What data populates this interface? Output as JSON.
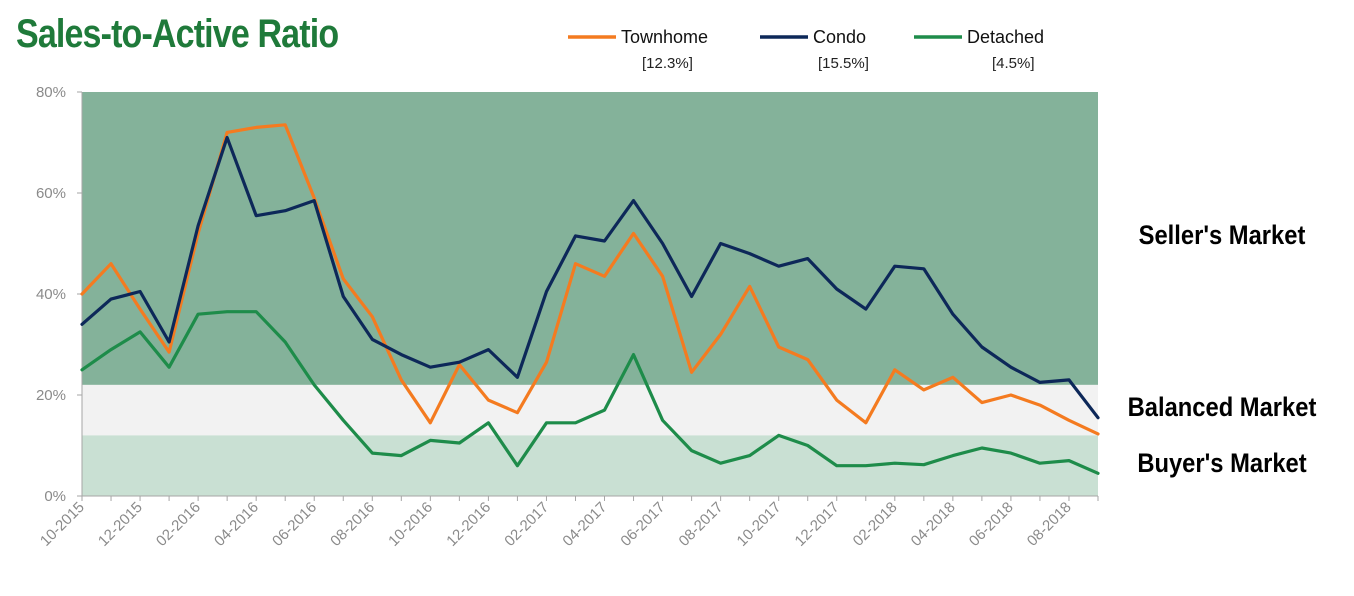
{
  "chart_data": {
    "type": "line",
    "title": "Sales-to-Active Ratio",
    "title_color": "#1f7a3a",
    "xlabel": "",
    "ylabel": "",
    "ylim": [
      0,
      80
    ],
    "y_ticks": [
      "0%",
      "20%",
      "40%",
      "60%",
      "80%"
    ],
    "x_tick_labels": [
      "10-2015",
      "12-2015",
      "02-2016",
      "04-2016",
      "06-2016",
      "08-2016",
      "10-2016",
      "12-2016",
      "02-2017",
      "04-2017",
      "06-2017",
      "08-2017",
      "10-2017",
      "12-2017",
      "02-2018",
      "04-2018",
      "06-2018",
      "08-2018"
    ],
    "x": [
      "10-2015",
      "11-2015",
      "12-2015",
      "01-2016",
      "02-2016",
      "03-2016",
      "04-2016",
      "05-2016",
      "06-2016",
      "07-2016",
      "08-2016",
      "09-2016",
      "10-2016",
      "11-2016",
      "12-2016",
      "01-2017",
      "02-2017",
      "03-2017",
      "04-2017",
      "05-2017",
      "06-2017",
      "07-2017",
      "08-2017",
      "09-2017",
      "10-2017",
      "11-2017",
      "12-2017",
      "01-2018",
      "02-2018",
      "03-2018",
      "04-2018",
      "05-2018",
      "06-2018",
      "07-2018",
      "08-2018",
      "09-2018"
    ],
    "series": [
      {
        "name": "Townhome",
        "note": "[12.3%]",
        "color": "#f47b20",
        "values": [
          40,
          46,
          37,
          28.5,
          52,
          72,
          73,
          73.5,
          59,
          43,
          35.5,
          23,
          14.5,
          26,
          19,
          16.5,
          26.5,
          46,
          43.5,
          52,
          43.5,
          24.5,
          32,
          41.5,
          29.5,
          27,
          19,
          14.5,
          25,
          21,
          23.5,
          18.5,
          20,
          18,
          15,
          12.3
        ]
      },
      {
        "name": "Condo",
        "note": "[15.5%]",
        "color": "#0d2859",
        "values": [
          34,
          39,
          40.5,
          30.5,
          53.5,
          71,
          55.5,
          56.5,
          58.5,
          39.5,
          31,
          28,
          25.5,
          26.5,
          29,
          23.5,
          40.5,
          51.5,
          50.5,
          58.5,
          50,
          39.5,
          50,
          48,
          45.5,
          47,
          41,
          37,
          45.5,
          45,
          36,
          29.5,
          25.5,
          22.5,
          23,
          15.5
        ]
      },
      {
        "name": "Detached",
        "note": "[4.5%]",
        "color": "#1e8c4a",
        "values": [
          25,
          29,
          32.5,
          25.5,
          36,
          36.5,
          36.5,
          30.5,
          22,
          15,
          8.5,
          8,
          11,
          10.5,
          14.5,
          6,
          14.5,
          14.5,
          17,
          28,
          15,
          9,
          6.5,
          8,
          12,
          10,
          6,
          6,
          6.5,
          6.2,
          8,
          9.5,
          8.5,
          6.5,
          7,
          4.5
        ]
      }
    ],
    "zones": [
      {
        "label": "Seller's Market",
        "from": 22,
        "to": 80,
        "color": "#84b29a"
      },
      {
        "label": "Balanced Market",
        "from": 12,
        "to": 22,
        "color": "#f2f2f2"
      },
      {
        "label": "Buyer's Market",
        "from": 0,
        "to": 12,
        "color": "#c9e0d3"
      }
    ],
    "grid": false,
    "legend_position": "top"
  }
}
